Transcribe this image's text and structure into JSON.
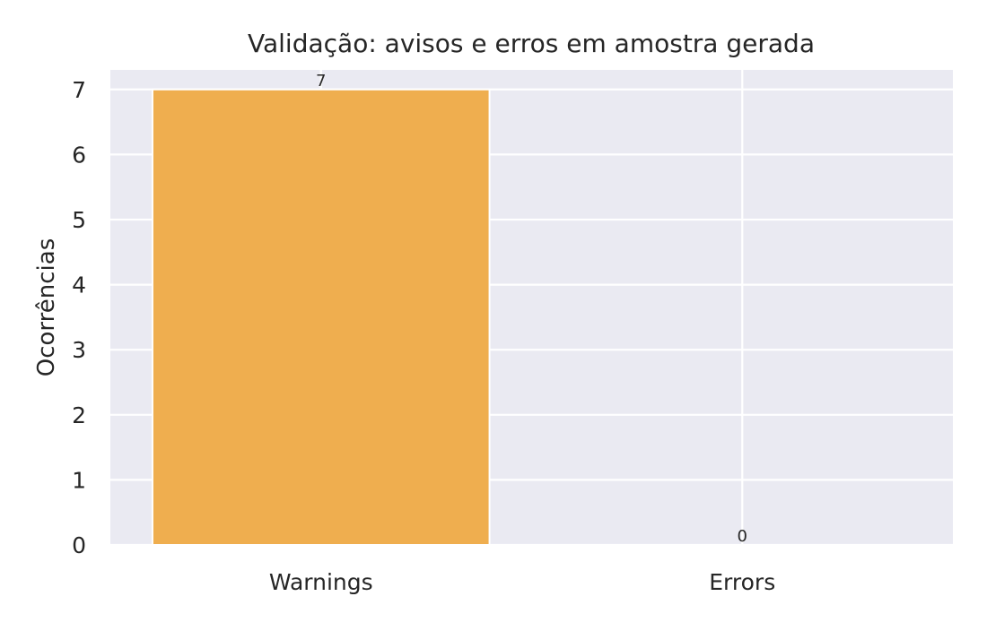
{
  "chart_data": {
    "type": "bar",
    "title": "Validação: avisos e erros em amostra gerada",
    "xlabel": "",
    "ylabel": "Ocorrências",
    "categories": [
      "Warnings",
      "Errors"
    ],
    "values": [
      7,
      0
    ],
    "data_labels": [
      "7",
      "0"
    ],
    "ylim": [
      0,
      7.3
    ],
    "yticks": [
      0,
      1,
      2,
      3,
      4,
      5,
      6,
      7
    ],
    "ytick_labels": [
      "0",
      "1",
      "2",
      "3",
      "4",
      "5",
      "6",
      "7"
    ],
    "grid": true,
    "legend": "none",
    "colors": {
      "bar": "#EFAE4F",
      "plot_background": "#EAEAF2",
      "grid": "#FFFFFF",
      "text": "#262626"
    }
  }
}
